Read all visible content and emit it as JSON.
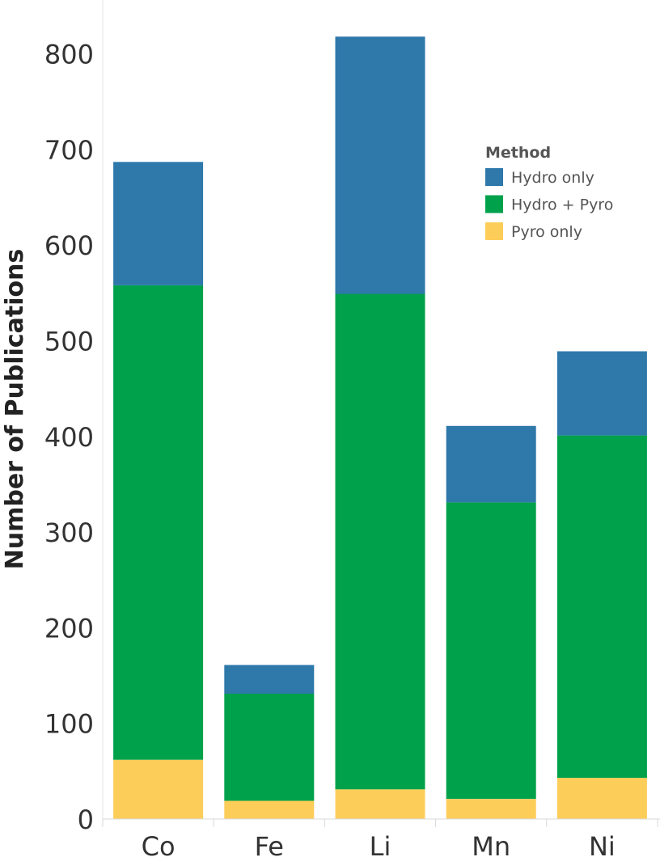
{
  "chart_data": {
    "type": "bar",
    "stacked": true,
    "categories": [
      "Co",
      "Fe",
      "Li",
      "Mn",
      "Ni"
    ],
    "series": [
      {
        "name": "Pyro only",
        "color": "#fdcd5a",
        "values": [
          62,
          19,
          31,
          21,
          43
        ]
      },
      {
        "name": "Hydro + Pyro",
        "color": "#00a14b",
        "values": [
          496,
          112,
          518,
          310,
          358
        ]
      },
      {
        "name": "Hydro only",
        "color": "#2e78aa",
        "values": [
          129,
          30,
          269,
          80,
          88
        ]
      }
    ],
    "ylabel": "Number of Publications",
    "xlabel": "",
    "ylim": [
      0,
      850
    ],
    "yticks": [
      0,
      100,
      200,
      300,
      400,
      500,
      600,
      700,
      800
    ],
    "legend": {
      "title": "Method",
      "position": "top-right"
    },
    "grid": false
  }
}
